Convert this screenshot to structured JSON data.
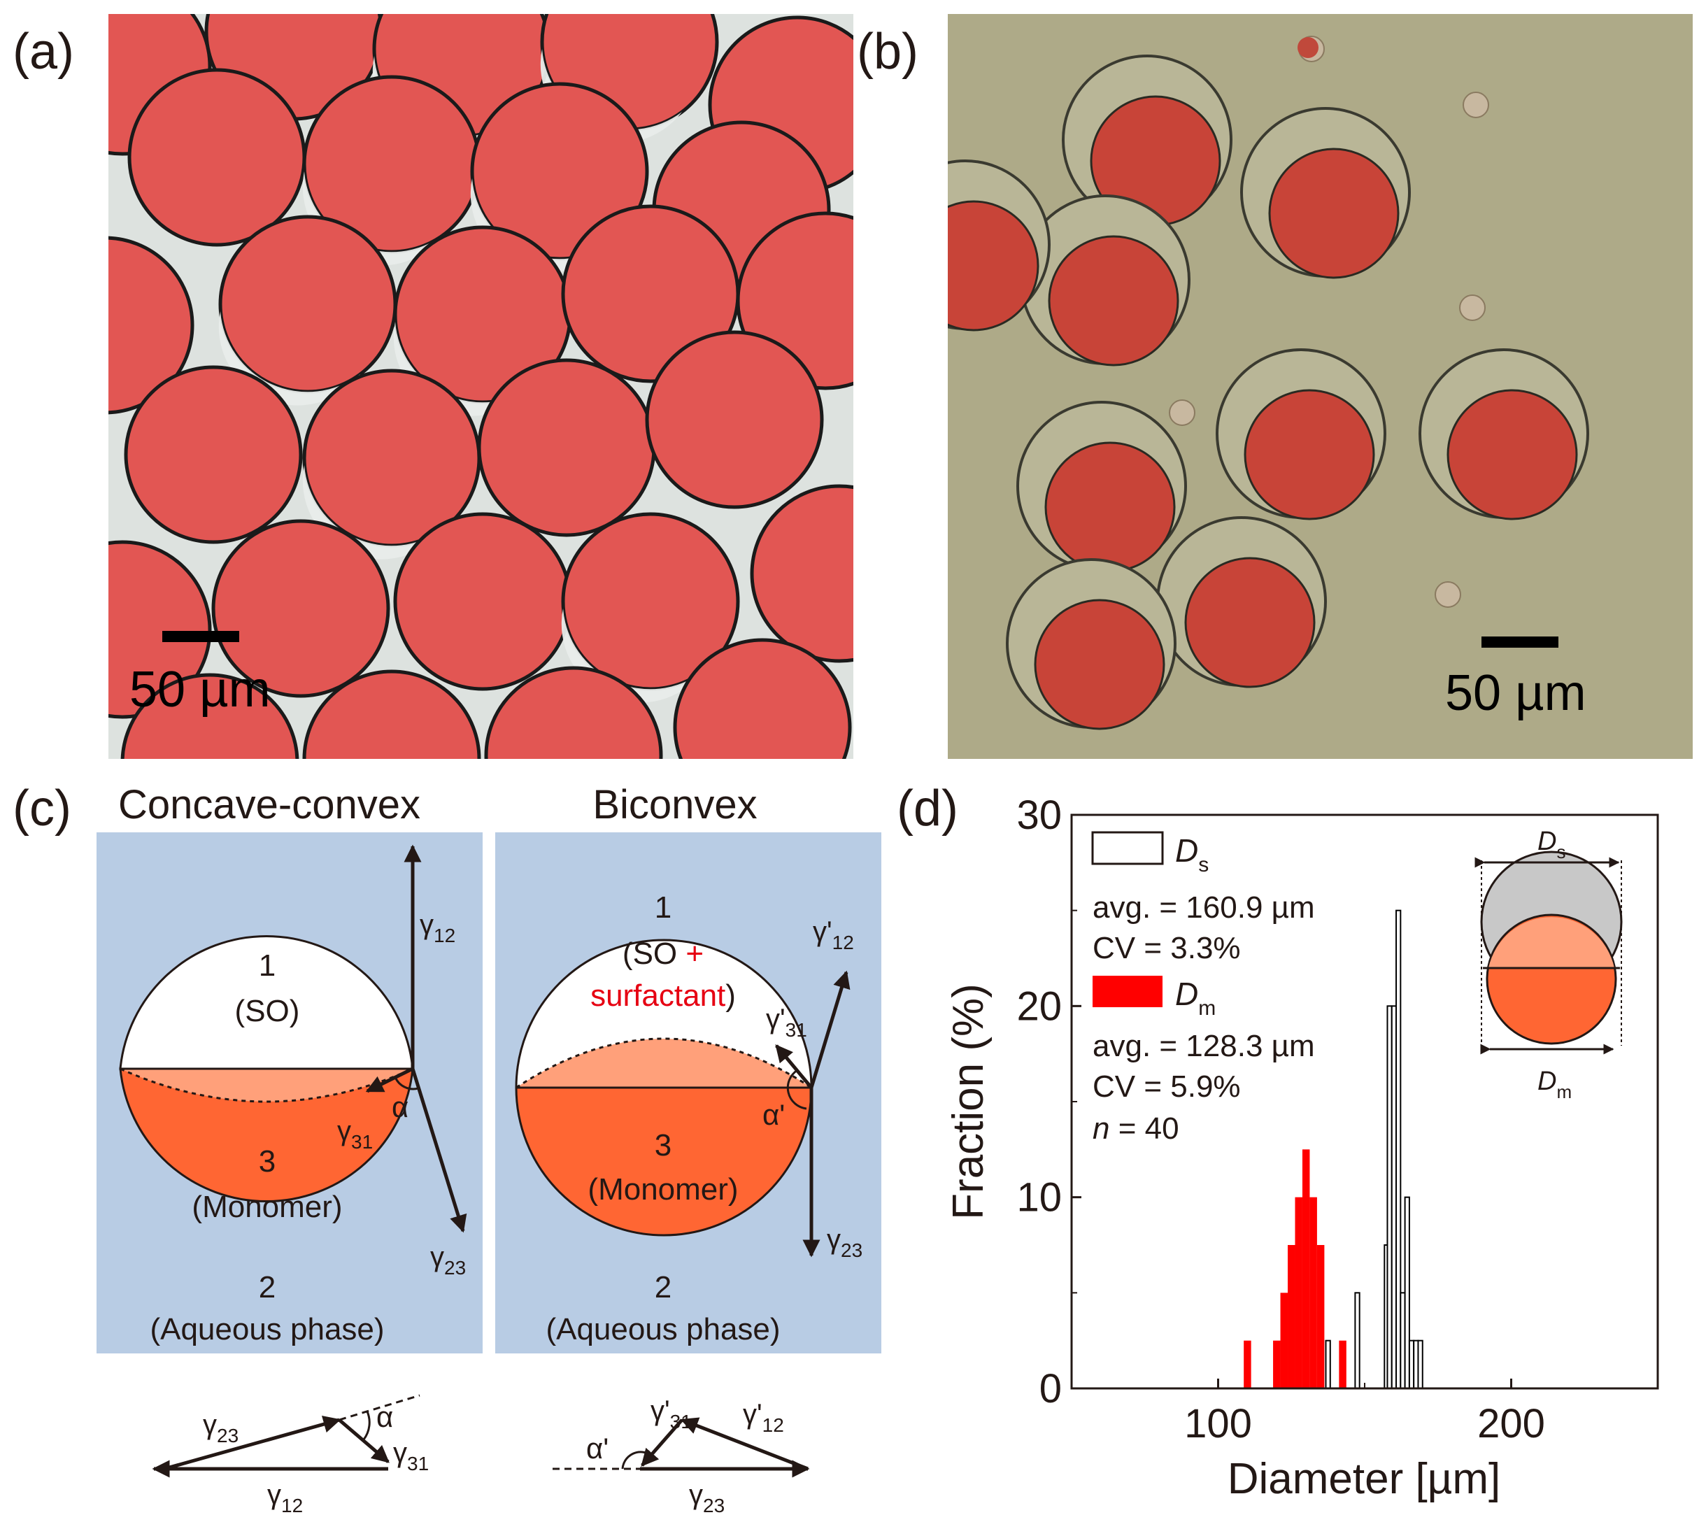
{
  "panels": {
    "a": {
      "label": "(a)",
      "scale_bar": "50 µm"
    },
    "b": {
      "label": "(b)",
      "scale_bar": "50 µm"
    },
    "c": {
      "label": "(c)",
      "left": {
        "title": "Concave-convex",
        "phase1_num": "1",
        "phase1_name": "(SO)",
        "phase3_num": "3",
        "phase3_name": "(Monomer)",
        "phase2_num": "2",
        "phase2_name": "(Aqueous phase)",
        "gamma12": "γ",
        "gamma12_sub": "12",
        "gamma23": "γ",
        "gamma23_sub": "23",
        "gamma31": "γ",
        "gamma31_sub": "31",
        "angle": "α"
      },
      "right": {
        "title": "Biconvex",
        "phase1_num": "1",
        "phase1_name_a": "(SO ",
        "phase1_plus": "+",
        "phase1_name_b": "surfactant",
        "phase1_close": ")",
        "phase3_num": "3",
        "phase3_name": "(Monomer)",
        "phase2_num": "2",
        "phase2_name": "(Aqueous phase)",
        "gamma12": "γ'",
        "gamma12_sub": "12",
        "gamma23": "γ",
        "gamma23_sub": "23",
        "gamma31": "γ'",
        "gamma31_sub": "31",
        "angle": "α'"
      },
      "triangle_left": {
        "g23": "γ",
        "g23_sub": "23",
        "g31": "γ",
        "g31_sub": "31",
        "g12": "γ",
        "g12_sub": "12",
        "angle": "α"
      },
      "triangle_right": {
        "g31": "γ'",
        "g31_sub": "31",
        "g12": "γ'",
        "g12_sub": "12",
        "g23": "γ",
        "g23_sub": "23",
        "angle": "α'"
      },
      "colors": {
        "background": "#b8cce4",
        "monomer": "#ff6633",
        "monomer_light": "#ffa07a"
      }
    },
    "d": {
      "label": "(d)",
      "legend": {
        "ds_label": "D",
        "ds_sub": "s",
        "ds_avg": "avg. = 160.9 µm",
        "ds_cv": "CV = 3.3%",
        "dm_label": "D",
        "dm_sub": "m",
        "dm_avg": "avg. = 128.3 µm",
        "dm_cv": "CV = 5.9%",
        "n_label": "n",
        "n_value": " = 40"
      },
      "inset": {
        "top_label": "D",
        "top_sub": "s",
        "bottom_label": "D",
        "bottom_sub": "m"
      }
    }
  },
  "chart_data": {
    "type": "bar",
    "title": "",
    "xlabel": "Diameter [µm]",
    "ylabel": "Fraction (%)",
    "xlim": [
      50,
      250
    ],
    "ylim": [
      0,
      30
    ],
    "x_ticks": [
      100,
      200
    ],
    "y_ticks": [
      0,
      10,
      20,
      30
    ],
    "bin_width": 2.5,
    "series": [
      {
        "name": "Dm",
        "color": "#ff0000",
        "fill": "solid",
        "bins": [
          {
            "x": 110,
            "y": 2.5
          },
          {
            "x": 120,
            "y": 2.5
          },
          {
            "x": 122.5,
            "y": 5
          },
          {
            "x": 125,
            "y": 7.5
          },
          {
            "x": 127.5,
            "y": 10
          },
          {
            "x": 130,
            "y": 12.5
          },
          {
            "x": 132.5,
            "y": 10
          },
          {
            "x": 135,
            "y": 7.5
          },
          {
            "x": 142.5,
            "y": 2.5
          }
        ]
      },
      {
        "name": "Ds",
        "color": "#000000",
        "fill": "open",
        "bins": [
          {
            "x": 137.5,
            "y": 2.5
          },
          {
            "x": 147.5,
            "y": 5
          },
          {
            "x": 157.5,
            "y": 7.5
          },
          {
            "x": 158.5,
            "y": 20
          },
          {
            "x": 160,
            "y": 20
          },
          {
            "x": 161.5,
            "y": 25
          },
          {
            "x": 163,
            "y": 5
          },
          {
            "x": 164.5,
            "y": 10
          },
          {
            "x": 166,
            "y": 2.5
          },
          {
            "x": 167.5,
            "y": 2.5
          },
          {
            "x": 169,
            "y": 2.5
          }
        ]
      }
    ]
  }
}
